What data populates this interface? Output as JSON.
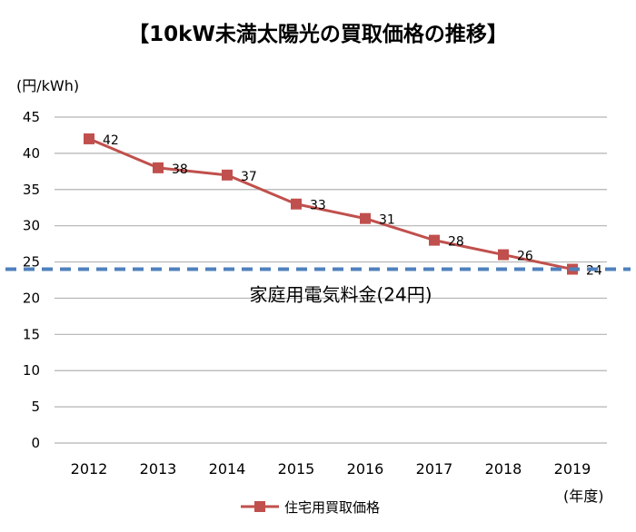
{
  "chart_data": {
    "type": "line",
    "title": "【10kW未満太陽光の買取価格の推移】",
    "ylabel": "(円/kWh)",
    "xlabel": "(年度)",
    "ylim": [
      0,
      45
    ],
    "yticks": [
      0,
      5,
      10,
      15,
      20,
      25,
      30,
      35,
      40,
      45
    ],
    "grid": true,
    "categories": [
      "2012",
      "2013",
      "2014",
      "2015",
      "2016",
      "2017",
      "2018",
      "2019"
    ],
    "series": [
      {
        "name": "住宅用買取価格",
        "values": [
          42,
          38,
          37,
          33,
          31,
          28,
          26,
          24
        ],
        "color": "#c0504d",
        "marker": "square"
      }
    ],
    "reference_line": {
      "value": 24,
      "label": "家庭用電気料金(24円)",
      "color": "#4f81bd",
      "style": "dashed"
    },
    "legend": {
      "position": "bottom-center"
    }
  }
}
